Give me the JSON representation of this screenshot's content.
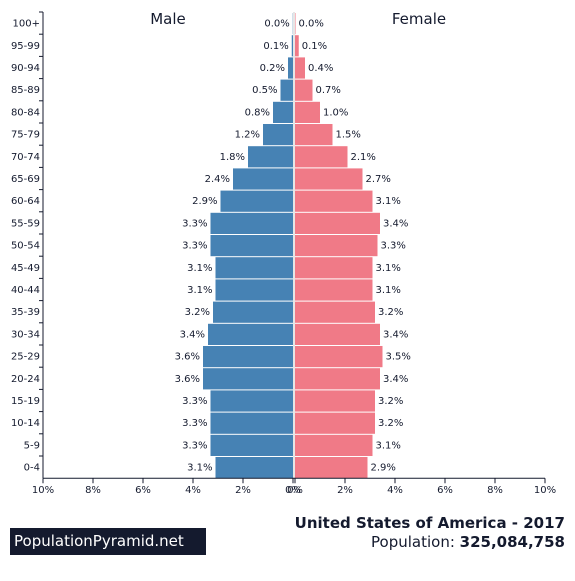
{
  "chart_data": {
    "type": "bar",
    "orientation": "horizontal-pyramid",
    "categories": [
      "100+",
      "95-99",
      "90-94",
      "85-89",
      "80-84",
      "75-79",
      "70-74",
      "65-69",
      "60-64",
      "55-59",
      "50-54",
      "45-49",
      "40-44",
      "35-39",
      "30-34",
      "25-29",
      "20-24",
      "15-19",
      "10-14",
      "5-9",
      "0-4"
    ],
    "series": [
      {
        "name": "Male",
        "color": "#4682b4",
        "values": [
          0.01,
          0.05,
          0.2,
          0.5,
          0.8,
          1.2,
          1.8,
          2.4,
          2.9,
          3.3,
          3.3,
          3.1,
          3.1,
          3.2,
          3.4,
          3.6,
          3.6,
          3.3,
          3.3,
          3.3,
          3.1
        ],
        "labels": [
          "0.0%",
          "0.1%",
          "0.2%",
          "0.5%",
          "0.8%",
          "1.2%",
          "1.8%",
          "2.4%",
          "2.9%",
          "3.3%",
          "3.3%",
          "3.1%",
          "3.1%",
          "3.2%",
          "3.4%",
          "3.6%",
          "3.6%",
          "3.3%",
          "3.3%",
          "3.3%",
          "3.1%"
        ]
      },
      {
        "name": "Female",
        "color": "#f07a87",
        "values": [
          0.02,
          0.15,
          0.4,
          0.7,
          1.0,
          1.5,
          2.1,
          2.7,
          3.1,
          3.4,
          3.3,
          3.1,
          3.1,
          3.2,
          3.4,
          3.5,
          3.4,
          3.2,
          3.2,
          3.1,
          2.9
        ],
        "labels": [
          "0.0%",
          "0.1%",
          "0.4%",
          "0.7%",
          "1.0%",
          "1.5%",
          "2.1%",
          "2.7%",
          "3.1%",
          "3.4%",
          "3.3%",
          "3.1%",
          "3.1%",
          "3.2%",
          "3.4%",
          "3.5%",
          "3.4%",
          "3.2%",
          "3.2%",
          "3.1%",
          "2.9%"
        ]
      }
    ],
    "xlim": [
      0,
      10
    ],
    "x_ticks_left": [
      "10%",
      "8%",
      "6%",
      "4%",
      "2%",
      "0%"
    ],
    "x_ticks_right": [
      "0%",
      "2%",
      "4%",
      "6%",
      "8%",
      "10%"
    ],
    "grid": false
  },
  "footer": {
    "brand": "PopulationPyramid.net",
    "country_title": "United States of America - 2017",
    "population_label": "Population: ",
    "population_value": "325,084,758"
  }
}
